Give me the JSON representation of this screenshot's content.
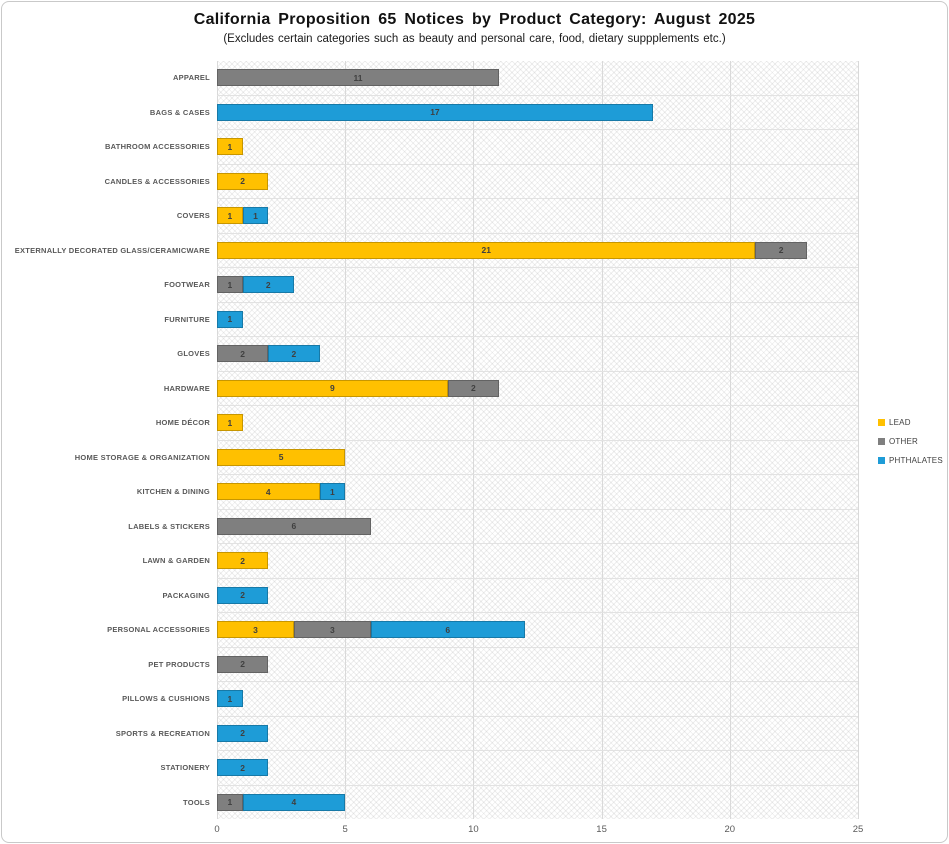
{
  "title": "California Proposition 65 Notices by Product Category: August 2025",
  "subtitle": "(Excludes certain categories such as beauty and personal care, food, dietary suppplements etc.)",
  "chart_data": {
    "type": "bar",
    "orientation": "horizontal",
    "stacked": true,
    "title": "California Proposition 65 Notices by Product Category: August 2025",
    "subtitle": "(Excludes certain categories such as beauty and personal care, food, dietary suppplements etc.)",
    "categories": [
      "APPAREL",
      "BAGS & CASES",
      "BATHROOM ACCESSORIES",
      "CANDLES & ACCESSORIES",
      "COVERS",
      "EXTERNALLY DECORATED GLASS/CERAMICWARE",
      "FOOTWEAR",
      "FURNITURE",
      "GLOVES",
      "HARDWARE",
      "HOME DÉCOR",
      "HOME STORAGE & ORGANIZATION",
      "KITCHEN & DINING",
      "LABELS & STICKERS",
      "LAWN & GARDEN",
      "PACKAGING",
      "PERSONAL ACCESSORIES",
      "PET PRODUCTS",
      "PILLOWS & CUSHIONS",
      "SPORTS & RECREATION",
      "STATIONERY",
      "TOOLS"
    ],
    "series": [
      {
        "name": "LEAD",
        "color": "#FFC000",
        "values": [
          0,
          0,
          1,
          2,
          1,
          21,
          0,
          0,
          0,
          9,
          1,
          5,
          4,
          0,
          2,
          0,
          3,
          0,
          0,
          0,
          0,
          0
        ]
      },
      {
        "name": "OTHER",
        "color": "#7F7F7F",
        "values": [
          11,
          0,
          0,
          0,
          0,
          2,
          1,
          0,
          2,
          2,
          0,
          0,
          0,
          6,
          0,
          0,
          3,
          2,
          0,
          0,
          0,
          1
        ]
      },
      {
        "name": "PHTHALATES",
        "color": "#1E9CD7",
        "values": [
          0,
          17,
          0,
          0,
          1,
          0,
          2,
          1,
          2,
          0,
          0,
          0,
          1,
          0,
          0,
          2,
          6,
          0,
          1,
          2,
          2,
          4
        ]
      }
    ],
    "xlim": [
      0,
      25
    ],
    "xticks": [
      0,
      5,
      10,
      15,
      20,
      25
    ],
    "grid": "vertical",
    "value_labels": true,
    "legend_position": "right"
  }
}
